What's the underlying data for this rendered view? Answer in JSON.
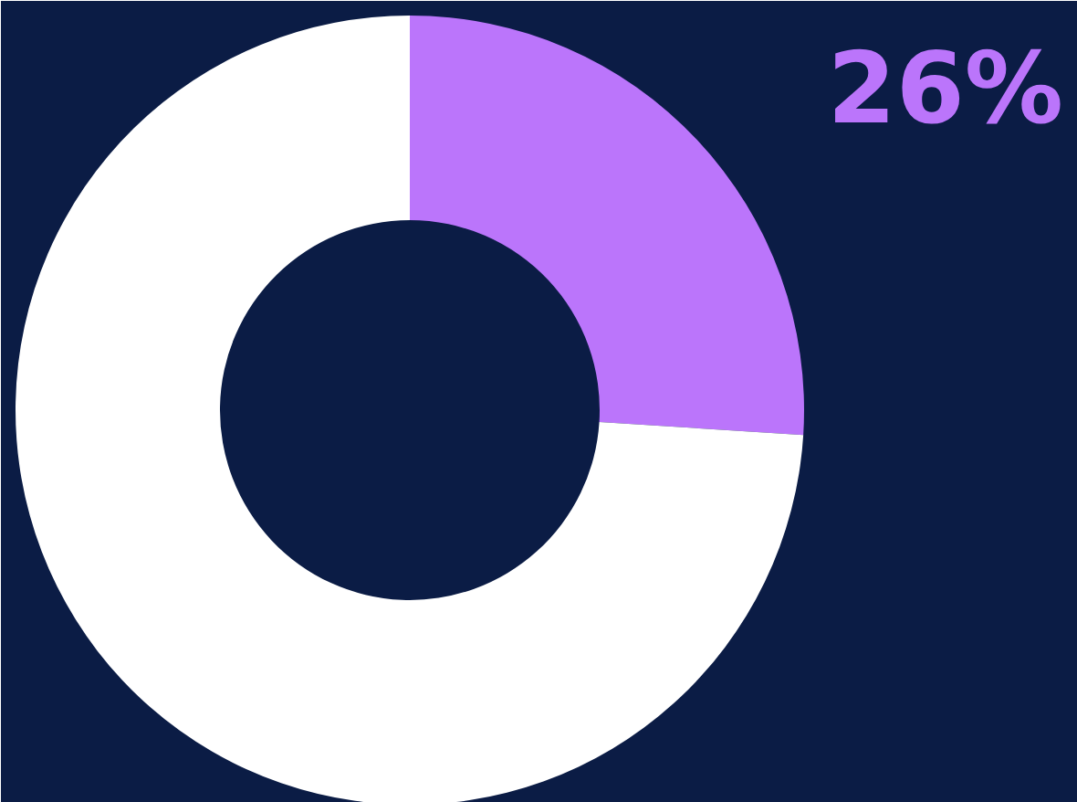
{
  "chart_data": {
    "type": "donut",
    "categories": [
      null,
      null
    ],
    "values": [
      26,
      74
    ],
    "colors": [
      "#bb75fb",
      "#ffffff"
    ],
    "value_labels": [
      "26%",
      null
    ]
  }
}
